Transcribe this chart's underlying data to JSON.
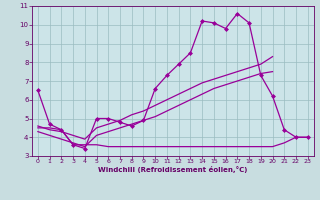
{
  "background_color": "#c8dde0",
  "plot_bg_color": "#cce4e8",
  "grid_color": "#9bbcc0",
  "line_color": "#990099",
  "xlabel": "Windchill (Refroidissement éolien,°C)",
  "xlabel_color": "#660066",
  "tick_color": "#660066",
  "xlim": [
    -0.5,
    23.5
  ],
  "ylim": [
    3,
    11
  ],
  "yticks": [
    3,
    4,
    5,
    6,
    7,
    8,
    9,
    10,
    11
  ],
  "xticks": [
    0,
    1,
    2,
    3,
    4,
    5,
    6,
    7,
    8,
    9,
    10,
    11,
    12,
    13,
    14,
    15,
    16,
    17,
    18,
    19,
    20,
    21,
    22,
    23
  ],
  "line1_x": [
    0,
    1,
    2,
    3,
    4,
    5,
    6,
    7,
    8,
    9,
    10,
    11,
    12,
    13,
    14,
    15,
    16,
    17,
    18,
    19,
    20,
    21,
    22,
    23
  ],
  "line1_y": [
    6.5,
    4.7,
    4.4,
    3.6,
    3.4,
    5.0,
    5.0,
    4.8,
    4.6,
    4.9,
    6.6,
    7.3,
    7.9,
    8.5,
    10.2,
    10.1,
    9.8,
    10.6,
    10.1,
    7.3,
    6.2,
    4.4,
    4.0,
    4.0
  ],
  "line2_x": [
    0,
    1,
    2,
    3,
    4,
    5,
    6,
    7,
    8,
    9,
    10,
    11,
    12,
    13,
    14,
    15,
    16,
    17,
    18,
    19,
    20
  ],
  "line2_y": [
    4.6,
    4.4,
    4.3,
    4.1,
    3.9,
    4.5,
    4.7,
    4.9,
    5.2,
    5.4,
    5.7,
    6.0,
    6.3,
    6.6,
    6.9,
    7.1,
    7.3,
    7.5,
    7.7,
    7.9,
    8.3
  ],
  "line3_x": [
    0,
    1,
    2,
    3,
    4,
    5,
    6,
    7,
    8,
    9,
    10,
    11,
    12,
    13,
    14,
    15,
    16,
    17,
    18,
    19,
    20
  ],
  "line3_y": [
    4.3,
    4.1,
    3.9,
    3.7,
    3.5,
    4.1,
    4.3,
    4.5,
    4.7,
    4.9,
    5.1,
    5.4,
    5.7,
    6.0,
    6.3,
    6.6,
    6.8,
    7.0,
    7.2,
    7.4,
    7.5
  ],
  "line4_x": [
    0,
    1,
    2,
    3,
    4,
    5,
    6,
    7,
    8,
    9,
    10,
    11,
    12,
    13,
    14,
    15,
    16,
    17,
    18,
    19,
    20,
    21,
    22,
    23
  ],
  "line4_y": [
    4.5,
    4.5,
    4.4,
    3.6,
    3.6,
    3.6,
    3.5,
    3.5,
    3.5,
    3.5,
    3.5,
    3.5,
    3.5,
    3.5,
    3.5,
    3.5,
    3.5,
    3.5,
    3.5,
    3.5,
    3.5,
    3.7,
    4.0,
    4.0
  ]
}
